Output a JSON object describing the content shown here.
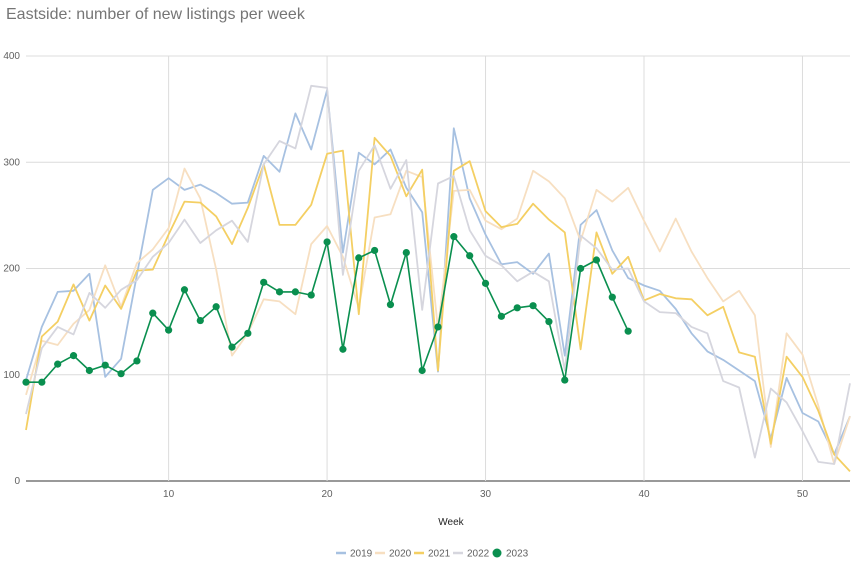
{
  "chart_data": {
    "type": "line",
    "title": "Eastside: number of new listings per week",
    "xlabel": "Week",
    "ylabel": "",
    "xlim": [
      1,
      53
    ],
    "ylim": [
      0,
      400
    ],
    "xticks": [
      10,
      20,
      30,
      40,
      50
    ],
    "yticks": [
      0,
      100,
      200,
      300,
      400
    ],
    "grid": true,
    "legend_position": "bottom",
    "series": [
      {
        "name": "2019",
        "color": "#a7c1e1",
        "opacity": 1,
        "markers": false,
        "x": [
          1,
          2,
          3,
          4,
          5,
          6,
          7,
          8,
          9,
          10,
          11,
          12,
          13,
          14,
          15,
          16,
          17,
          18,
          19,
          20,
          21,
          22,
          23,
          24,
          25,
          26,
          27,
          28,
          29,
          30,
          31,
          32,
          33,
          34,
          35,
          36,
          37,
          38,
          39,
          40,
          41,
          42,
          43,
          44,
          45,
          46,
          47,
          48,
          49,
          50,
          51,
          52,
          53
        ],
        "values": [
          95,
          145,
          178,
          179,
          195,
          98,
          115,
          194,
          274,
          285,
          274,
          279,
          271,
          261,
          262,
          306,
          291,
          346,
          312,
          368,
          215,
          309,
          298,
          312,
          276,
          253,
          103,
          332,
          266,
          232,
          204,
          206,
          195,
          214,
          118,
          241,
          255,
          217,
          191,
          184,
          179,
          162,
          139,
          122,
          114,
          104,
          94,
          40,
          97,
          64,
          56,
          25,
          61
        ]
      },
      {
        "name": "2020",
        "color": "#f7dfc1",
        "opacity": 1,
        "markers": false,
        "x": [
          1,
          2,
          3,
          4,
          5,
          6,
          7,
          8,
          9,
          10,
          11,
          12,
          13,
          14,
          15,
          16,
          17,
          18,
          19,
          20,
          21,
          22,
          23,
          24,
          25,
          26,
          27,
          28,
          29,
          30,
          31,
          32,
          33,
          34,
          35,
          36,
          37,
          38,
          39,
          40,
          41,
          42,
          43,
          44,
          45,
          46,
          47,
          48,
          49,
          50,
          51,
          52,
          53
        ],
        "values": [
          81,
          132,
          128,
          148,
          161,
          203,
          164,
          205,
          218,
          238,
          294,
          266,
          199,
          118,
          139,
          171,
          169,
          157,
          223,
          240,
          211,
          163,
          248,
          251,
          292,
          286,
          143,
          273,
          274,
          245,
          237,
          247,
          292,
          282,
          266,
          226,
          274,
          263,
          276,
          245,
          216,
          247,
          216,
          191,
          169,
          179,
          156,
          32,
          139,
          119,
          71,
          16,
          61
        ]
      },
      {
        "name": "2021",
        "color": "#f4cf63",
        "opacity": 1,
        "markers": false,
        "x": [
          1,
          2,
          3,
          4,
          5,
          6,
          7,
          8,
          9,
          10,
          11,
          12,
          13,
          14,
          15,
          16,
          17,
          18,
          19,
          20,
          21,
          22,
          23,
          24,
          25,
          26,
          27,
          28,
          29,
          30,
          31,
          32,
          33,
          34,
          35,
          36,
          37,
          38,
          39,
          40,
          41,
          42,
          43,
          44,
          45,
          46,
          47,
          48,
          49,
          50,
          51,
          52,
          53
        ],
        "values": [
          48,
          136,
          150,
          185,
          151,
          184,
          162,
          198,
          199,
          232,
          263,
          262,
          249,
          223,
          257,
          298,
          241,
          241,
          260,
          308,
          311,
          157,
          323,
          306,
          268,
          293,
          104,
          292,
          301,
          254,
          239,
          242,
          261,
          246,
          234,
          124,
          234,
          195,
          211,
          170,
          176,
          172,
          171,
          156,
          164,
          121,
          117,
          35,
          117,
          98,
          66,
          25,
          9
        ]
      },
      {
        "name": "2022",
        "color": "#d6d6de",
        "opacity": 1,
        "markers": false,
        "x": [
          1,
          2,
          3,
          4,
          5,
          6,
          7,
          8,
          9,
          10,
          11,
          12,
          13,
          14,
          15,
          16,
          17,
          18,
          19,
          20,
          21,
          22,
          23,
          24,
          25,
          26,
          27,
          28,
          29,
          30,
          31,
          32,
          33,
          34,
          35,
          36,
          37,
          38,
          39,
          40,
          41,
          42,
          43,
          44,
          45,
          46,
          47,
          48,
          49,
          50,
          51,
          52,
          53
        ],
        "values": [
          63,
          125,
          145,
          138,
          177,
          163,
          180,
          189,
          211,
          224,
          246,
          224,
          236,
          245,
          225,
          298,
          320,
          313,
          372,
          370,
          194,
          292,
          316,
          275,
          302,
          161,
          280,
          287,
          236,
          212,
          203,
          188,
          197,
          188,
          104,
          231,
          219,
          199,
          200,
          169,
          159,
          158,
          145,
          139,
          94,
          88,
          22,
          87,
          74,
          47,
          18,
          16,
          92
        ]
      },
      {
        "name": "2023",
        "color": "#0a8f4f",
        "opacity": 1,
        "markers": true,
        "x": [
          1,
          2,
          3,
          4,
          5,
          6,
          7,
          8,
          9,
          10,
          11,
          12,
          13,
          14,
          15,
          16,
          17,
          18,
          19,
          20,
          21,
          22,
          23,
          24,
          25,
          26,
          27,
          28,
          29,
          30,
          31,
          32,
          33,
          34,
          35,
          36,
          37,
          38,
          39
        ],
        "values": [
          93,
          93,
          110,
          118,
          104,
          109,
          101,
          113,
          158,
          142,
          180,
          151,
          164,
          126,
          139,
          187,
          178,
          178,
          175,
          225,
          124,
          210,
          217,
          166,
          215,
          104,
          145,
          230,
          212,
          186,
          155,
          163,
          165,
          150,
          95,
          200,
          208,
          173,
          141
        ]
      }
    ]
  }
}
